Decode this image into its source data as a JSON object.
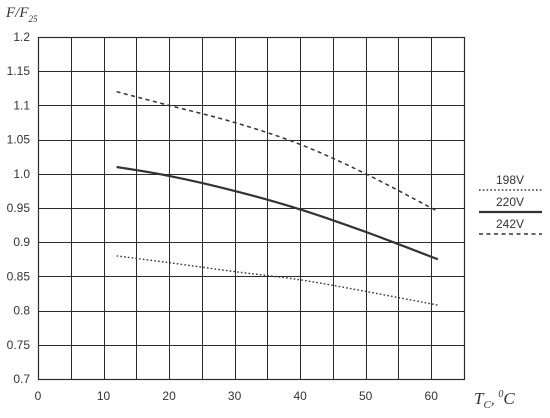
{
  "chart_data": {
    "type": "line",
    "ylabel": "F/F",
    "ylabel_subscript": "25",
    "xlabel_main": "T",
    "xlabel_subscript": "C",
    "xlabel_sep": ", ",
    "xlabel_unit_sup": "0",
    "xlabel_unit": "C",
    "xlim": [
      0,
      65
    ],
    "ylim": [
      0.7,
      1.2
    ],
    "xticks": [
      0,
      10,
      20,
      30,
      40,
      50,
      60
    ],
    "xtick_labels": [
      "0",
      "10",
      "20",
      "30",
      "40",
      "50",
      "60"
    ],
    "yticks": [
      0.7,
      0.75,
      0.8,
      0.85,
      0.9,
      0.95,
      1.0,
      1.05,
      1.1,
      1.15,
      1.2
    ],
    "ytick_labels": [
      "0.7",
      "0.75",
      "0.8",
      "0.85",
      "0.9",
      "0.95",
      "1.0",
      "1.05",
      "1.1",
      "1.15",
      "1.2"
    ],
    "grid": true,
    "legend_position": "right",
    "series": [
      {
        "name": "198V",
        "style": "dotted",
        "points": [
          [
            12,
            0.88
          ],
          [
            20,
            0.87
          ],
          [
            30,
            0.857
          ],
          [
            40,
            0.845
          ],
          [
            50,
            0.828
          ],
          [
            61,
            0.808
          ]
        ]
      },
      {
        "name": "220V",
        "style": "solid",
        "points": [
          [
            12,
            1.01
          ],
          [
            20,
            0.997
          ],
          [
            30,
            0.975
          ],
          [
            40,
            0.948
          ],
          [
            50,
            0.915
          ],
          [
            61,
            0.875
          ]
        ]
      },
      {
        "name": "242V",
        "style": "dashed",
        "points": [
          [
            12,
            1.12
          ],
          [
            20,
            1.1
          ],
          [
            30,
            1.075
          ],
          [
            40,
            1.043
          ],
          [
            50,
            1.0
          ],
          [
            61,
            0.945
          ]
        ]
      }
    ],
    "colors": {
      "line": "#333333",
      "grid": "#2b2b2b",
      "text": "#333333"
    }
  }
}
